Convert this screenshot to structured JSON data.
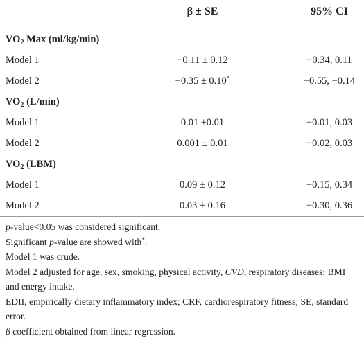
{
  "table": {
    "header": [
      "β ± SE",
      "95% CI"
    ],
    "sections": [
      {
        "title": {
          "main": "VO",
          "sub": "2",
          "rest": " Max (ml/kg/min)"
        },
        "rows": [
          {
            "label": "Model 1",
            "beta": "−0.11 ± 0.12",
            "ci": "−0.34, 0.11"
          },
          {
            "label": "Model 2",
            "beta": "−0.35 ± 0.10",
            "beta_sup": "*",
            "ci": "−0.55, −0.14"
          }
        ]
      },
      {
        "title": {
          "main": "VO",
          "sub": "2",
          "rest": " (L/min)"
        },
        "rows": [
          {
            "label": "Model 1",
            "beta": "0.01 ±0.01",
            "ci": "−0.01, 0.03"
          },
          {
            "label": "Model 2",
            "beta": "0.001 ± 0.01",
            "ci": "−0.02, 0.03"
          }
        ]
      },
      {
        "title": {
          "main": "VO",
          "sub": "2",
          "rest": " (LBM)"
        },
        "rows": [
          {
            "label": "Model 1",
            "beta": "0.09 ± 0.12",
            "ci": "−0.15, 0.34"
          },
          {
            "label": "Model 2",
            "beta": "0.03 ± 0.16",
            "ci": "−0.30, 0.36"
          }
        ]
      }
    ],
    "footnotes": [
      [
        {
          "text": "p",
          "italic": true
        },
        {
          "text": "-value<0.05 was considered significant."
        }
      ],
      [
        {
          "text": "Significant "
        },
        {
          "text": "p",
          "italic": true
        },
        {
          "text": "-value are showed with"
        },
        {
          "text": "*",
          "sup": true
        },
        {
          "text": "."
        }
      ],
      [
        {
          "text": "Model 1 was crude."
        }
      ],
      [
        {
          "text": "Model 2 adjusted for age, sex, smoking, physical activity, "
        },
        {
          "text": "CVD",
          "italic": true
        },
        {
          "text": ", respiratory diseases; BMI and energy intake."
        }
      ],
      [
        {
          "text": "EDII, empirically dietary inflammatory index; CRF, cardiorespiratory fitness; SE, standard error."
        }
      ],
      [
        {
          "text": "β",
          "italic": true
        },
        {
          "text": " coefficient obtained from linear regression."
        }
      ]
    ]
  }
}
